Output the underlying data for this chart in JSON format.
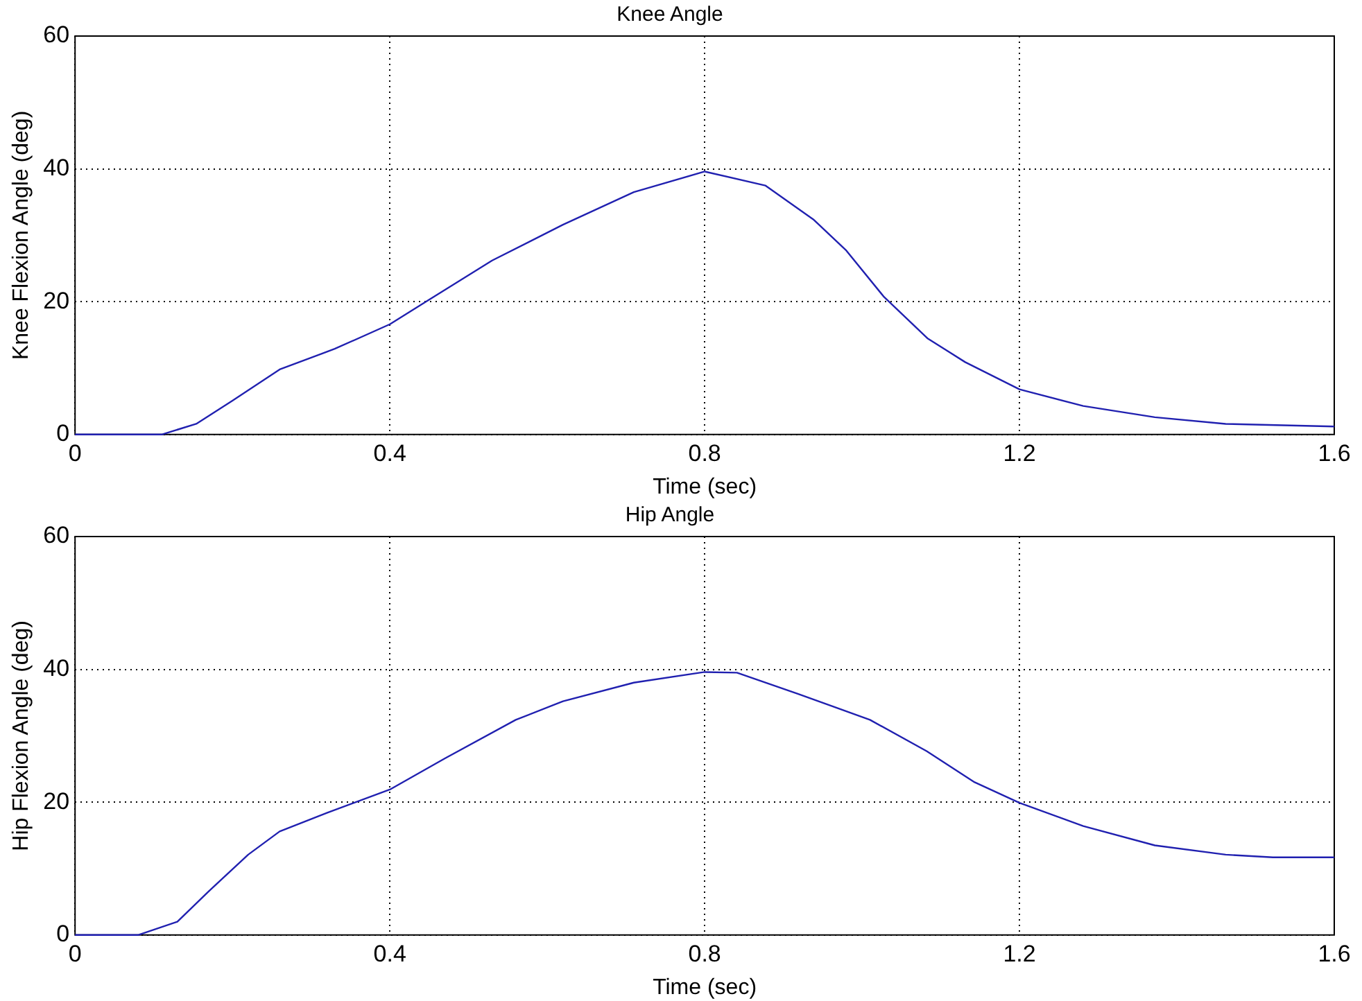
{
  "chart_data": [
    {
      "type": "line",
      "title": "Knee Angle",
      "xlabel": "Time (sec)",
      "ylabel": "Knee Flexion Angle (deg)",
      "xlim": [
        0,
        1.6
      ],
      "xticks": [
        0,
        0.4,
        0.8,
        1.2,
        1.6
      ],
      "ylim": [
        0,
        60
      ],
      "yticks": [
        0,
        20,
        40,
        60
      ],
      "grid": true,
      "legend": false,
      "marker": "none",
      "line_style": "solid",
      "series": [
        {
          "color": "#2020b0",
          "x": [
            0,
            0.11,
            0.154,
            0.2,
            0.26,
            0.33,
            0.4,
            0.45,
            0.53,
            0.62,
            0.71,
            0.8,
            0.877,
            0.938,
            0.98,
            1.028,
            1.083,
            1.131,
            1.2,
            1.281,
            1.372,
            1.462,
            1.6
          ],
          "values": [
            0,
            0,
            1.6,
            5.1,
            9.8,
            12.9,
            16.6,
            20.3,
            26.2,
            31.6,
            36.5,
            39.6,
            37.5,
            32.4,
            27.7,
            20.7,
            14.5,
            10.9,
            6.8,
            4.3,
            2.6,
            1.6,
            1.2
          ]
        }
      ]
    },
    {
      "type": "line",
      "title": "Hip Angle",
      "xlabel": "Time (sec)",
      "ylabel": "Hip Flexion Angle (deg)",
      "xlim": [
        0,
        1.6
      ],
      "xticks": [
        0,
        0.4,
        0.8,
        1.2,
        1.6
      ],
      "ylim": [
        0,
        60
      ],
      "yticks": [
        0,
        20,
        40,
        60
      ],
      "grid": true,
      "legend": false,
      "marker": "none",
      "line_style": "solid",
      "series": [
        {
          "color": "#2020b0",
          "x": [
            0,
            0.08,
            0.13,
            0.17,
            0.22,
            0.26,
            0.32,
            0.4,
            0.47,
            0.56,
            0.62,
            0.71,
            0.8,
            0.841,
            0.919,
            1.01,
            1.082,
            1.143,
            1.2,
            1.281,
            1.372,
            1.462,
            1.522,
            1.6
          ],
          "values": [
            0,
            0,
            2.0,
            6.6,
            12.1,
            15.6,
            18.4,
            21.9,
            26.6,
            32.4,
            35.2,
            38.0,
            39.6,
            39.5,
            36.3,
            32.4,
            27.7,
            23.0,
            19.9,
            16.4,
            13.5,
            12.1,
            11.7,
            11.7
          ]
        }
      ]
    }
  ]
}
